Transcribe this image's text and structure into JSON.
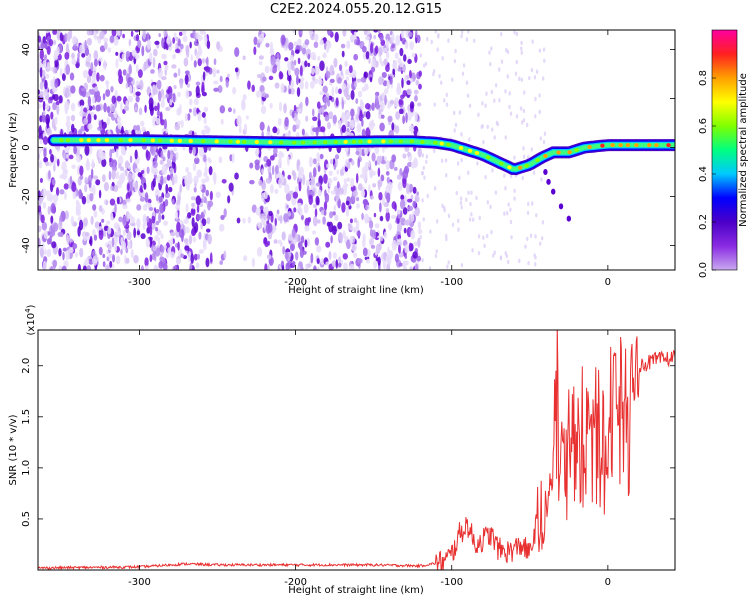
{
  "title": "C2E2.2024.055.20.12.G15",
  "colors": {
    "snr_line": "#e83030",
    "axis": "#000000",
    "background": "#ffffff",
    "colormap": [
      "#ffffff",
      "#c9a9f0",
      "#8a2be2",
      "#4b00c8",
      "#0000ff",
      "#00c8ff",
      "#00ff80",
      "#80ff00",
      "#ffff00",
      "#ffa000",
      "#ff2020",
      "#ff00a0"
    ]
  },
  "chart_data": [
    {
      "type": "heatmap",
      "xlabel": "Height of straight line (km)",
      "ylabel": "Frequency (Hz)",
      "xlim": [
        -365,
        43
      ],
      "ylim": [
        -50,
        48
      ],
      "x_ticks": [
        -300,
        -200,
        -100,
        0
      ],
      "y_ticks": [
        -40,
        -20,
        0,
        20,
        40
      ],
      "grid": false,
      "colorbar": {
        "label": "Normalized spectral amplitude",
        "range": [
          0.0,
          1.0
        ],
        "ticks": [
          0.0,
          0.2,
          0.4,
          0.6,
          0.8
        ]
      },
      "ridge": [
        {
          "x": -355,
          "y": 3
        },
        {
          "x": -300,
          "y": 3
        },
        {
          "x": -250,
          "y": 2.5
        },
        {
          "x": -200,
          "y": 2
        },
        {
          "x": -150,
          "y": 2.5
        },
        {
          "x": -125,
          "y": 2.5
        },
        {
          "x": -110,
          "y": 2
        },
        {
          "x": -100,
          "y": 1
        },
        {
          "x": -90,
          "y": -1
        },
        {
          "x": -80,
          "y": -3
        },
        {
          "x": -70,
          "y": -6
        },
        {
          "x": -60,
          "y": -9
        },
        {
          "x": -50,
          "y": -7
        },
        {
          "x": -42,
          "y": -4
        },
        {
          "x": -35,
          "y": -2
        },
        {
          "x": -25,
          "y": -2
        },
        {
          "x": -15,
          "y": 0
        },
        {
          "x": 0,
          "y": 1
        },
        {
          "x": 20,
          "y": 1
        },
        {
          "x": 43,
          "y": 1
        }
      ]
    },
    {
      "type": "line",
      "xlabel": "Height of straight line (km)",
      "ylabel": "SNR (10 * v/v)",
      "y_scale_label": "(x10",
      "y_scale_exp": "4",
      "xlim": [
        -365,
        43
      ],
      "ylim": [
        0,
        2.35
      ],
      "x_ticks": [
        -300,
        -200,
        -100,
        0
      ],
      "y_ticks": [
        0.5,
        1.0,
        1.5,
        2.0
      ],
      "y_tick_labels": [
        "0.5",
        "1.0",
        "1.5",
        "2.0"
      ],
      "grid": false,
      "series": [
        {
          "x": [
            -365,
            -300,
            -270,
            -250,
            -200,
            -150,
            -120,
            -105,
            -100,
            -95,
            -90,
            -85,
            -80,
            -75,
            -70,
            -65,
            -60,
            -55,
            -50,
            -45,
            -40,
            -38,
            -35,
            -32,
            -30,
            -28,
            -25,
            -20,
            -15,
            -10,
            -5,
            0,
            10,
            20,
            30,
            43
          ],
          "y": [
            0.02,
            0.03,
            0.06,
            0.05,
            0.05,
            0.05,
            0.04,
            0.08,
            0.15,
            0.35,
            0.45,
            0.25,
            0.3,
            0.35,
            0.2,
            0.18,
            0.2,
            0.25,
            0.15,
            0.5,
            0.6,
            0.9,
            1.2,
            2.35,
            1.4,
            1.45,
            1.6,
            1.5,
            1.7,
            1.6,
            1.75,
            1.85,
            1.95,
            2.0,
            2.05,
            2.08
          ]
        }
      ]
    }
  ]
}
